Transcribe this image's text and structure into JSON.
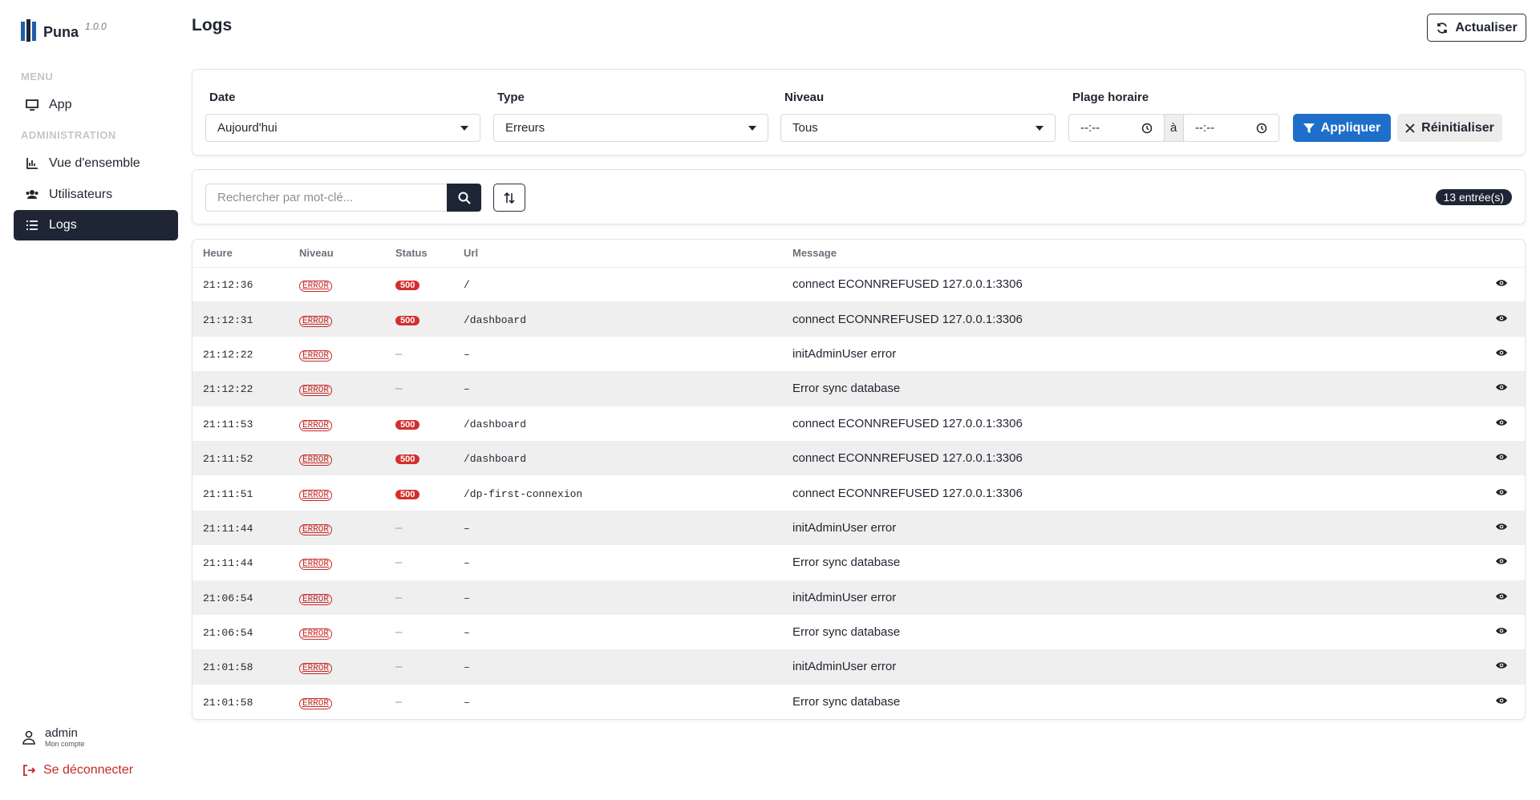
{
  "sidebar": {
    "brand": "Puna",
    "version": "1.0.0",
    "sections": [
      {
        "title": "MENU",
        "items": [
          "App"
        ]
      },
      {
        "title": "ADMINISTRATION",
        "items": [
          "Vue d'ensemble",
          "Utilisateurs",
          "Logs"
        ]
      }
    ],
    "user": {
      "name": "admin",
      "subtitle": "Mon compte",
      "logout": "Se déconnecter"
    }
  },
  "header": {
    "title": "Logs",
    "refresh": "Actualiser"
  },
  "filters": {
    "date": {
      "label": "Date",
      "value": "Aujourd'hui"
    },
    "type": {
      "label": "Type",
      "value": "Erreurs"
    },
    "level": {
      "label": "Niveau",
      "value": "Tous"
    },
    "time_range": {
      "label": "Plage horaire",
      "from": "--:--",
      "separator": "à",
      "to": "--:--"
    },
    "apply": "Appliquer",
    "reset": "Réinitialiser"
  },
  "search": {
    "placeholder": "Rechercher par mot-clé...",
    "count": "13 entrée(s)"
  },
  "table": {
    "columns": [
      "Heure",
      "Niveau",
      "Status",
      "Url",
      "Message"
    ],
    "rows": [
      [
        "21:12:36",
        "ERROR",
        "500",
        "/",
        "connect ECONNREFUSED 127.0.0.1:3306"
      ],
      [
        "21:12:31",
        "ERROR",
        "500",
        "/dashboard",
        "connect ECONNREFUSED 127.0.0.1:3306"
      ],
      [
        "21:12:22",
        "ERROR",
        "–",
        "–",
        "initAdminUser error"
      ],
      [
        "21:12:22",
        "ERROR",
        "–",
        "–",
        "Error sync database"
      ],
      [
        "21:11:53",
        "ERROR",
        "500",
        "/dashboard",
        "connect ECONNREFUSED 127.0.0.1:3306"
      ],
      [
        "21:11:52",
        "ERROR",
        "500",
        "/dashboard",
        "connect ECONNREFUSED 127.0.0.1:3306"
      ],
      [
        "21:11:51",
        "ERROR",
        "500",
        "/dp-first-connexion",
        "connect ECONNREFUSED 127.0.0.1:3306"
      ],
      [
        "21:11:44",
        "ERROR",
        "–",
        "–",
        "initAdminUser error"
      ],
      [
        "21:11:44",
        "ERROR",
        "–",
        "–",
        "Error sync database"
      ],
      [
        "21:06:54",
        "ERROR",
        "–",
        "–",
        "initAdminUser error"
      ],
      [
        "21:06:54",
        "ERROR",
        "–",
        "–",
        "Error sync database"
      ],
      [
        "21:01:58",
        "ERROR",
        "–",
        "–",
        "initAdminUser error"
      ],
      [
        "21:01:58",
        "ERROR",
        "–",
        "–",
        "Error sync database"
      ]
    ]
  }
}
